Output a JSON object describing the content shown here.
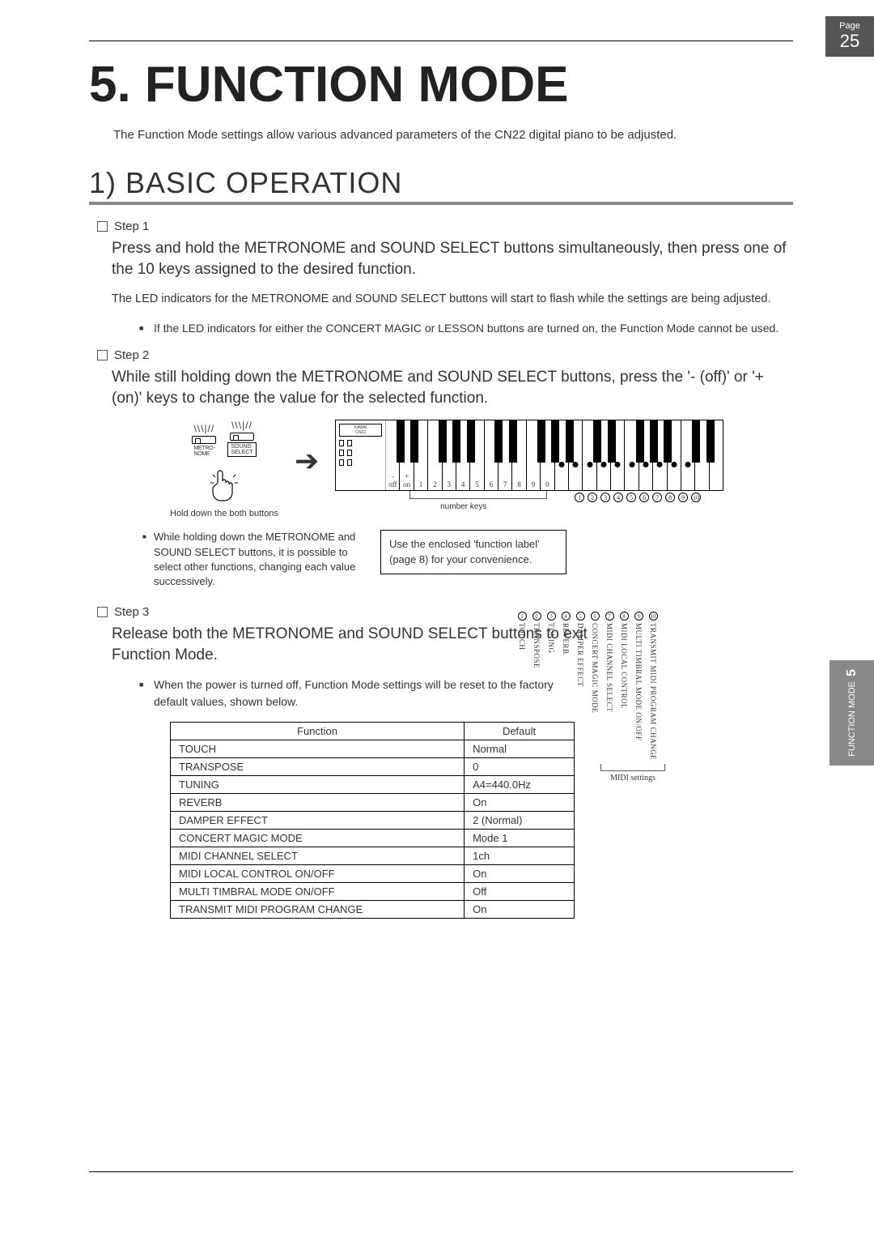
{
  "page": {
    "label": "Page",
    "number": "25"
  },
  "sideTab": {
    "text": "FUNCTION MODE",
    "num": "5"
  },
  "chapterTitle": "5. FUNCTION MODE",
  "intro": "The Function Mode settings allow various advanced parameters of the CN22 digital piano to be adjusted.",
  "sectionTitle": "1) BASIC OPERATION",
  "step1": {
    "label": "Step 1",
    "body": "Press and hold the METRONOME and SOUND SELECT buttons simultaneously, then press one of the 10 keys assigned to the desired function.",
    "sub": "The LED indicators for the METRONOME and SOUND SELECT buttons will start to flash while the settings are being adjusted.",
    "bullet": "If the LED indicators for either the CONCERT MAGIC or LESSON buttons are turned on, the Function Mode cannot be used."
  },
  "step2": {
    "label": "Step 2",
    "body": "While still holding down the METRONOME and SOUND SELECT buttons, press the '- (off)' or '+ (on)' keys to change the value for the selected function."
  },
  "diagram": {
    "btn1": "METRO-\nNOME",
    "btn2": "SOUND\nSELECT",
    "holdCaption": "Hold down the both buttons",
    "leftTiny": "KAWAI",
    "leftTiny2": "CN22",
    "keyLabels": [
      "-\noff",
      "+\non",
      "1",
      "2",
      "3",
      "4",
      "5",
      "6",
      "7",
      "8",
      "9",
      "0"
    ],
    "numberKeysLabel": "number keys",
    "noteLeft": "While holding down the METRONOME and SOUND SELECT buttons, it is possible to select other functions, changing each value successively.",
    "noteBox": "Use the enclosed 'function label' (page 8) for your convenience.",
    "circled": [
      "1",
      "2",
      "3",
      "4",
      "5",
      "6",
      "7",
      "8",
      "9",
      "10"
    ],
    "vlabels": [
      "TOUCH",
      "TRANSPOSE",
      "TUNING",
      "REVERB",
      "DAMPER EFFECT",
      "CONCERT MAGIC MODE",
      "MIDI CHANNEL SELECT",
      "MIDI LOCAL CONTROL",
      "MULTI TIMBRAL MODE ON/OFF",
      "TRANSMIT MIDI PROGRAM CHANGE"
    ],
    "midiSettings": "MIDI settings"
  },
  "step3": {
    "label": "Step 3",
    "body": "Release both the METRONOME and SOUND SELECT buttons to exit Function Mode.",
    "bullet": "When the power is turned off, Function Mode settings will be reset to the factory default values, shown below."
  },
  "defaultsTable": {
    "headers": [
      "Function",
      "Default"
    ],
    "rows": [
      [
        "TOUCH",
        "Normal"
      ],
      [
        "TRANSPOSE",
        "0"
      ],
      [
        "TUNING",
        "A4=440.0Hz"
      ],
      [
        "REVERB",
        "On"
      ],
      [
        "DAMPER EFFECT",
        "2 (Normal)"
      ],
      [
        "CONCERT MAGIC MODE",
        "Mode 1"
      ],
      [
        "MIDI CHANNEL SELECT",
        "1ch"
      ],
      [
        "MIDI LOCAL CONTROL ON/OFF",
        "On"
      ],
      [
        "MULTI TIMBRAL MODE ON/OFF",
        "Off"
      ],
      [
        "TRANSMIT MIDI PROGRAM CHANGE",
        "On"
      ]
    ]
  }
}
